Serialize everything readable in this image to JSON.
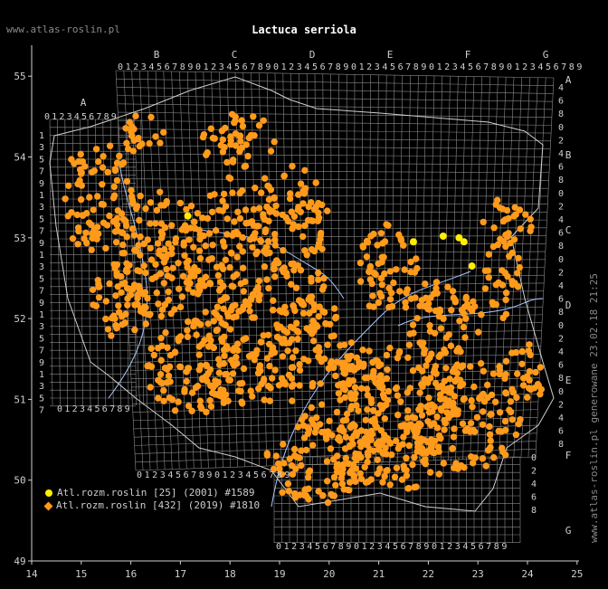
{
  "site_label": "www.atlas-roslin.pl",
  "title": "Lactuca serriola",
  "stamp": "www.atlas-roslin.pl generowane 23.02.18 21:25",
  "legend": [
    {
      "label": "Atl.rozm.roslin [25] (2001) #1589",
      "color": "#ffee00"
    },
    {
      "label": "Atl.rozm.roslin [432] (2019) #1810",
      "color": "#ff9a1a"
    }
  ],
  "x_axis_labels": [
    "14",
    "15",
    "16",
    "17",
    "18",
    "19",
    "20",
    "21",
    "22",
    "23",
    "24",
    "25"
  ],
  "y_axis_labels": [
    "55",
    "54",
    "53",
    "52",
    "51",
    "50",
    "49"
  ],
  "grid_top_letters": [
    "B",
    "C",
    "D",
    "E",
    "F",
    "G"
  ],
  "grid_letter_a": "A",
  "grid_right_letters": [
    "A",
    "B",
    "C",
    "D",
    "E",
    "F",
    "G"
  ],
  "grid_digits": "0123456789",
  "right_digits": [
    "4",
    "6",
    "8",
    "0",
    "2",
    "4",
    "6",
    "8",
    "0",
    "2",
    "4",
    "6",
    "8",
    "0",
    "2",
    "4",
    "6",
    "8",
    "0",
    "2",
    "4",
    "6",
    "8",
    "0",
    "2",
    "4",
    "6",
    "8",
    "0",
    "2",
    "4",
    "6",
    "8"
  ],
  "left_digits": [
    "1",
    "3",
    "5",
    "7",
    "9",
    "1",
    "3",
    "5",
    "7",
    "9",
    "1",
    "3",
    "5",
    "7",
    "9",
    "1",
    "3",
    "5",
    "7",
    "9",
    "1",
    "3",
    "5",
    "7"
  ],
  "colors": {
    "orange": "#ff9a1a",
    "yellow": "#ffee00",
    "grid": "#8a8a8a",
    "river": "#a9c8ff",
    "border": "#cfcfcf",
    "axis": "#cfcfcf"
  },
  "yellow_points": [
    [
      17.15,
      53.27
    ],
    [
      21.7,
      52.95
    ],
    [
      22.3,
      53.02
    ],
    [
      22.62,
      53.0
    ],
    [
      22.72,
      52.95
    ],
    [
      22.88,
      52.65
    ]
  ],
  "orange_clusters": [
    [
      15.3,
      53.5,
      0.75,
      0.7
    ],
    [
      16.5,
      52.8,
      0.9,
      0.8
    ],
    [
      18.0,
      52.9,
      1.0,
      0.9
    ],
    [
      19.2,
      53.2,
      0.8,
      0.7
    ],
    [
      18.3,
      51.6,
      1.2,
      0.7
    ],
    [
      17.2,
      51.4,
      0.9,
      0.6
    ],
    [
      20.2,
      51.1,
      1.0,
      0.7
    ],
    [
      21.4,
      51.0,
      1.2,
      0.7
    ],
    [
      22.8,
      50.8,
      1.1,
      0.7
    ],
    [
      21.2,
      50.3,
      1.2,
      0.45
    ],
    [
      19.8,
      50.2,
      1.1,
      0.5
    ],
    [
      21.2,
      52.6,
      0.6,
      0.6
    ],
    [
      22.3,
      52.0,
      0.8,
      0.5
    ],
    [
      19.5,
      52.2,
      0.7,
      0.5
    ],
    [
      15.8,
      52.2,
      0.6,
      0.5
    ],
    [
      23.5,
      52.5,
      0.4,
      0.5
    ],
    [
      23.6,
      53.2,
      0.5,
      0.3
    ],
    [
      16.2,
      54.3,
      0.5,
      0.25
    ],
    [
      18.2,
      54.2,
      0.8,
      0.35
    ],
    [
      23.9,
      51.3,
      0.5,
      0.4
    ]
  ]
}
